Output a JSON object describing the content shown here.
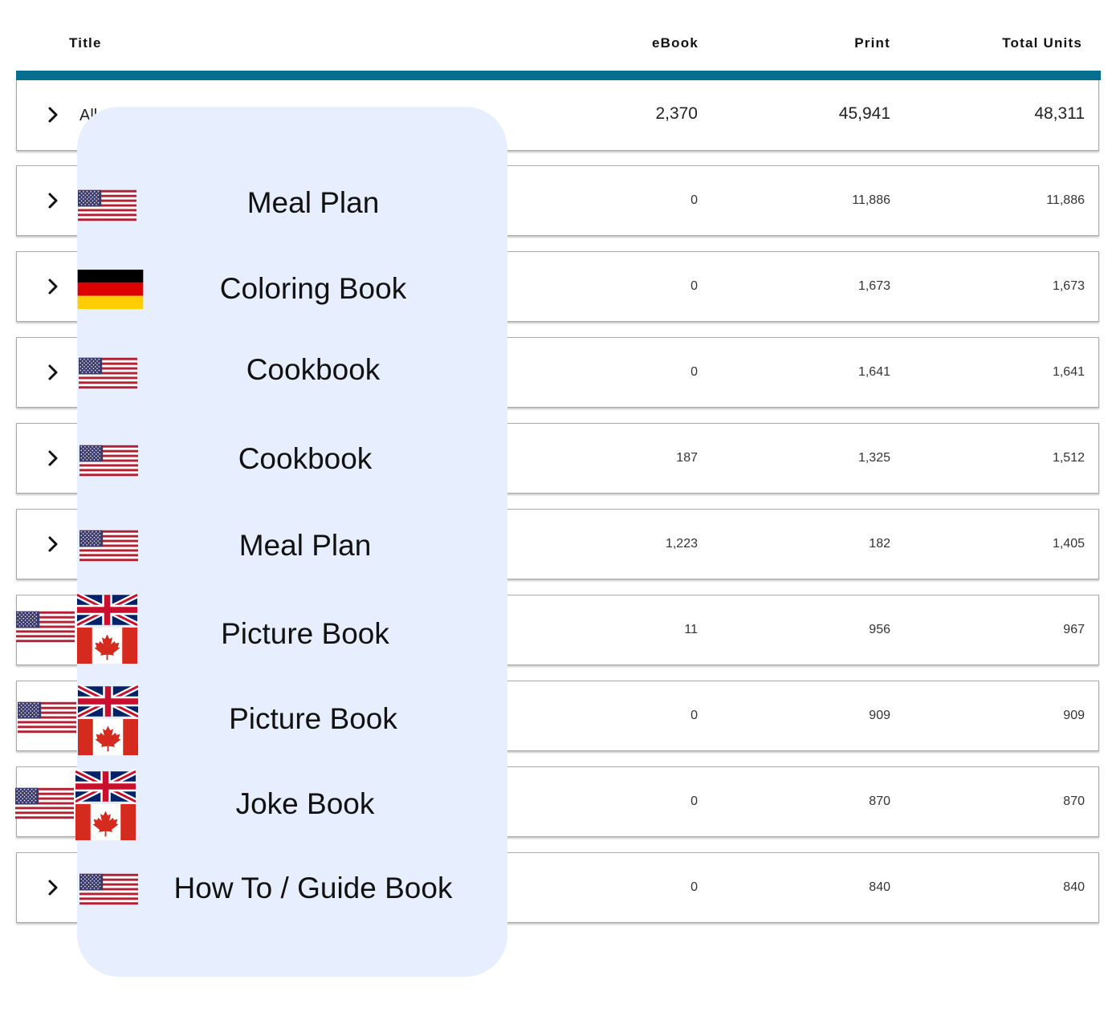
{
  "table": {
    "columns": {
      "title": "Title",
      "ebook": "eBook",
      "print": "Print",
      "total": "Total Units"
    },
    "all_row": {
      "label": "All",
      "ebook": "2,370",
      "print": "45,941",
      "total": "48,311"
    },
    "rows": [
      {
        "title": "Meal Plan",
        "ebook": "0",
        "print": "11,886",
        "total": "11,886",
        "flags": [
          "us-flag-icon"
        ]
      },
      {
        "title": "Coloring Book",
        "ebook": "0",
        "print": "1,673",
        "total": "1,673",
        "flags": [
          "de-flag-icon"
        ]
      },
      {
        "title": "Cookbook",
        "ebook": "0",
        "print": "1,641",
        "total": "1,641",
        "flags": [
          "us-flag-icon"
        ]
      },
      {
        "title": "Cookbook",
        "ebook": "187",
        "print": "1,325",
        "total": "1,512",
        "flags": [
          "us-flag-icon"
        ]
      },
      {
        "title": "Meal Plan",
        "ebook": "1,223",
        "print": "182",
        "total": "1,405",
        "flags": [
          "us-flag-icon"
        ]
      },
      {
        "title": "Picture Book",
        "ebook": "11",
        "print": "956",
        "total": "967",
        "flags": [
          "us-flag-icon",
          "uk-flag-icon",
          "ca-flag-icon"
        ]
      },
      {
        "title": "Picture Book",
        "ebook": "0",
        "print": "909",
        "total": "909",
        "flags": [
          "us-flag-icon",
          "uk-flag-icon",
          "ca-flag-icon"
        ]
      },
      {
        "title": "Joke Book",
        "ebook": "0",
        "print": "870",
        "total": "870",
        "flags": [
          "us-flag-icon",
          "uk-flag-icon",
          "ca-flag-icon"
        ]
      },
      {
        "title": "How To / Guide Book",
        "ebook": "0",
        "print": "840",
        "total": "840",
        "flags": [
          "us-flag-icon"
        ]
      }
    ]
  },
  "colors": {
    "accent_bar": "#066f8f",
    "overlay_panel": "#e7eefd"
  },
  "icons": {
    "row_expand": "chevron-right-icon"
  }
}
